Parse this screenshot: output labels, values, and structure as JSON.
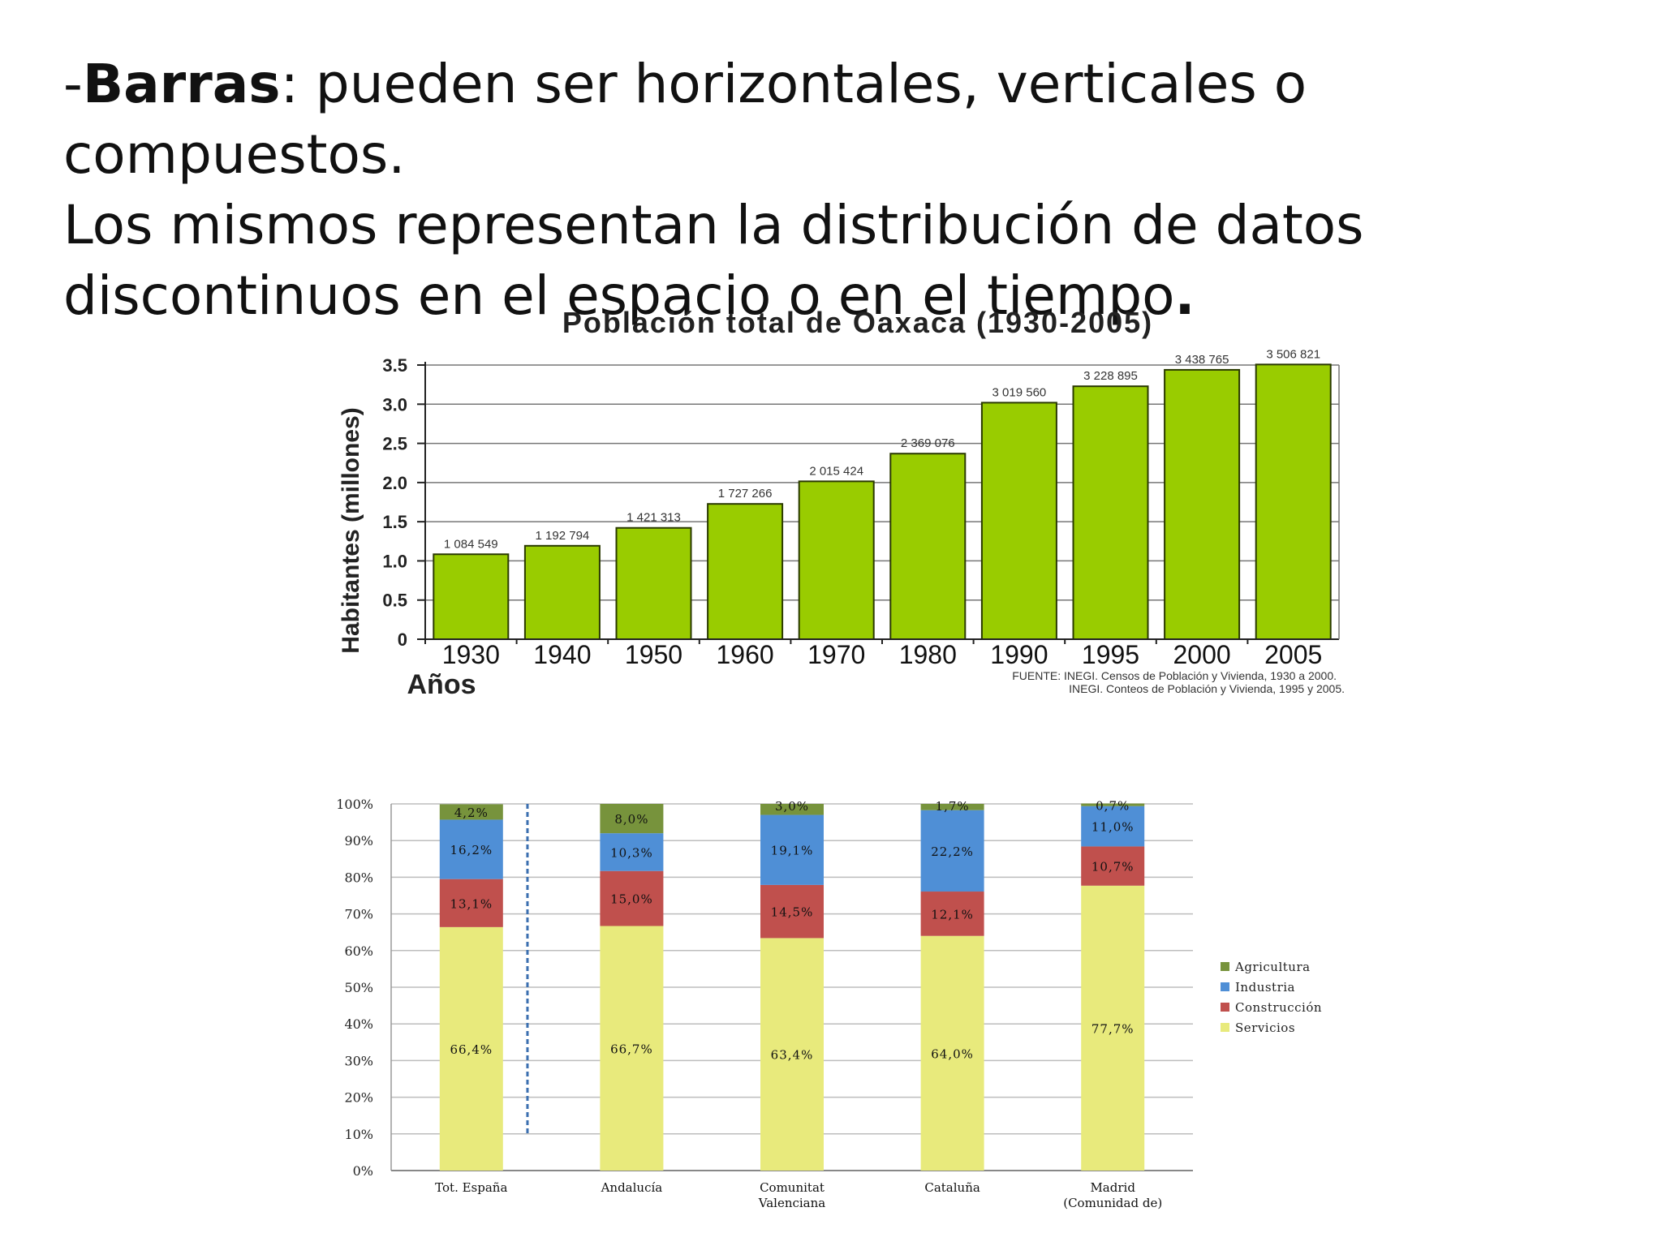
{
  "slide": {
    "dash": "-",
    "term": "Barras",
    "sentence1": ": pueden ser horizontales, verticales o compuestos.",
    "line2": "Los mismos representan la distribución de datos",
    "line3": "discontinuos en el espacio o en el tiempo",
    "period": "."
  },
  "chart_data": [
    {
      "type": "bar",
      "title": "Población total de Oaxaca (1930-2005)",
      "ylabel": "Habitantes (millones)",
      "xlabel": "Años",
      "ylim": [
        0,
        3.5
      ],
      "yticks": [
        "0",
        "0.5",
        "1.0",
        "1.5",
        "2.0",
        "2.5",
        "3.0",
        "3.5"
      ],
      "grid": true,
      "categories": [
        "1930",
        "1940",
        "1950",
        "1960",
        "1970",
        "1980",
        "1990",
        "1995",
        "2000",
        "2005"
      ],
      "values": [
        1.084549,
        1.192794,
        1.421313,
        1.727266,
        2.015424,
        2.369076,
        3.01956,
        3.228895,
        3.438765,
        3.506821
      ],
      "data_labels": [
        "1 084 549",
        "1 192 794",
        "1 421 313",
        "1 727 266",
        "2 015 424",
        "2 369 076",
        "3 019 560",
        "3 228 895",
        "3 438 765",
        "3 506 821"
      ],
      "bar_color": "#99cc00",
      "source_lines": [
        "FUENTE: INEGI. Censos de Población y Vivienda, 1930 a 2000.",
        "INEGI. Conteos de Población y Vivienda, 1995 y 2005."
      ]
    },
    {
      "type": "bar",
      "stacked": true,
      "ylim": [
        0,
        100
      ],
      "yticks": [
        "0%",
        "10%",
        "20%",
        "30%",
        "40%",
        "50%",
        "60%",
        "70%",
        "80%",
        "90%",
        "100%"
      ],
      "grid": true,
      "categories": [
        [
          "Tot. España"
        ],
        [
          "Andalucía"
        ],
        [
          "Comunitat",
          "Valenciana"
        ],
        [
          "Cataluña"
        ],
        [
          "Madrid",
          "(Comunidad de)"
        ]
      ],
      "series": [
        {
          "name": "Servicios",
          "color": "#e8ea7c",
          "values": [
            66.4,
            66.7,
            63.4,
            64.0,
            77.7
          ],
          "labels": [
            "66,4%",
            "66,7%",
            "63,4%",
            "64,0%",
            "77,7%"
          ]
        },
        {
          "name": "Construcción",
          "color": "#c0504d",
          "values": [
            13.1,
            15.0,
            14.5,
            12.1,
            10.7
          ],
          "labels": [
            "13,1%",
            "15,0%",
            "14,5%",
            "12,1%",
            "10,7%"
          ]
        },
        {
          "name": "Industria",
          "color": "#4f8fd6",
          "values": [
            16.2,
            10.3,
            19.1,
            22.2,
            11.0
          ],
          "labels": [
            "16,2%",
            "10,3%",
            "19,1%",
            "22,2%",
            "11,0%"
          ]
        },
        {
          "name": "Agricultura",
          "color": "#77933c",
          "values": [
            4.2,
            8.0,
            3.0,
            1.7,
            0.7
          ],
          "labels": [
            "4,2%",
            "8,0%",
            "3,0%",
            "1,7%",
            "0,7%"
          ]
        }
      ],
      "legend_order": [
        "Agricultura",
        "Industria",
        "Construcción",
        "Servicios"
      ],
      "legend_position": "right"
    }
  ]
}
